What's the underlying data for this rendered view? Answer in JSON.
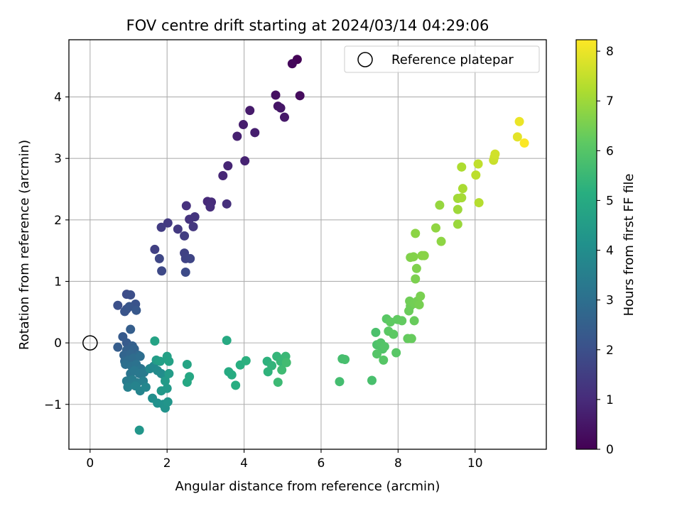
{
  "chart_data": {
    "type": "scatter",
    "title": "FOV centre drift starting at 2024/03/14 04:29:06",
    "xlabel": "Angular distance from reference (arcmin)",
    "ylabel": "Rotation from reference (arcmin)",
    "xlim": [
      -0.55,
      11.85
    ],
    "ylim": [
      -1.73,
      4.93
    ],
    "xticks": [
      0,
      2,
      4,
      6,
      8,
      10
    ],
    "yticks": [
      -1,
      0,
      1,
      2,
      3,
      4
    ],
    "xtick_labels": [
      "0",
      "2",
      "4",
      "6",
      "8",
      "10"
    ],
    "ytick_labels": [
      "−1",
      "0",
      "1",
      "2",
      "3",
      "4"
    ],
    "grid": true,
    "legend": {
      "position": "top-right",
      "entries": [
        {
          "label": "Reference platepar",
          "marker": "open-circle"
        }
      ]
    },
    "reference_point": {
      "x": 0,
      "y": 0
    },
    "colorbar": {
      "label": "Hours from first FF file",
      "colormap": "viridis",
      "range": [
        0,
        8.23
      ],
      "ticks": [
        0,
        1,
        2,
        3,
        4,
        5,
        6,
        7,
        8
      ],
      "tick_labels": [
        "0",
        "1",
        "2",
        "3",
        "4",
        "5",
        "6",
        "7",
        "8"
      ]
    },
    "series": [
      {
        "name": "",
        "points": [
          {
            "x": 5.38,
            "y": 4.61,
            "c": 0.05
          },
          {
            "x": 5.25,
            "y": 4.54,
            "c": 0.15
          },
          {
            "x": 5.45,
            "y": 4.02,
            "c": 0.25
          },
          {
            "x": 4.82,
            "y": 4.03,
            "c": 0.35
          },
          {
            "x": 4.88,
            "y": 3.85,
            "c": 0.45
          },
          {
            "x": 4.95,
            "y": 3.82,
            "c": 0.5
          },
          {
            "x": 5.05,
            "y": 3.67,
            "c": 0.55
          },
          {
            "x": 4.15,
            "y": 3.78,
            "c": 0.6
          },
          {
            "x": 3.98,
            "y": 3.55,
            "c": 0.65
          },
          {
            "x": 4.28,
            "y": 3.42,
            "c": 0.7
          },
          {
            "x": 3.82,
            "y": 3.36,
            "c": 0.75
          },
          {
            "x": 4.02,
            "y": 2.96,
            "c": 0.8
          },
          {
            "x": 3.58,
            "y": 2.88,
            "c": 0.85
          },
          {
            "x": 3.45,
            "y": 2.72,
            "c": 0.9
          },
          {
            "x": 3.05,
            "y": 2.3,
            "c": 0.95
          },
          {
            "x": 3.15,
            "y": 2.29,
            "c": 1.0
          },
          {
            "x": 3.12,
            "y": 2.21,
            "c": 1.05
          },
          {
            "x": 3.55,
            "y": 2.26,
            "c": 1.1
          },
          {
            "x": 2.5,
            "y": 2.23,
            "c": 1.15
          },
          {
            "x": 2.58,
            "y": 2.01,
            "c": 1.2
          },
          {
            "x": 2.72,
            "y": 2.05,
            "c": 1.25
          },
          {
            "x": 2.68,
            "y": 1.89,
            "c": 1.3
          },
          {
            "x": 2.28,
            "y": 1.85,
            "c": 1.35
          },
          {
            "x": 2.02,
            "y": 1.95,
            "c": 1.4
          },
          {
            "x": 1.85,
            "y": 1.88,
            "c": 1.45
          },
          {
            "x": 2.45,
            "y": 1.74,
            "c": 1.5
          },
          {
            "x": 1.68,
            "y": 1.52,
            "c": 1.55
          },
          {
            "x": 2.45,
            "y": 1.46,
            "c": 1.6
          },
          {
            "x": 2.48,
            "y": 1.37,
            "c": 1.65
          },
          {
            "x": 2.6,
            "y": 1.37,
            "c": 1.7
          },
          {
            "x": 1.8,
            "y": 1.37,
            "c": 1.75
          },
          {
            "x": 1.86,
            "y": 1.17,
            "c": 1.8
          },
          {
            "x": 2.48,
            "y": 1.15,
            "c": 1.85
          },
          {
            "x": 0.95,
            "y": 0.79,
            "c": 1.9
          },
          {
            "x": 1.05,
            "y": 0.78,
            "c": 1.95
          },
          {
            "x": 0.72,
            "y": 0.61,
            "c": 2.0
          },
          {
            "x": 0.95,
            "y": 0.55,
            "c": 2.05
          },
          {
            "x": 1.18,
            "y": 0.63,
            "c": 2.1
          },
          {
            "x": 0.9,
            "y": 0.51,
            "c": 2.15
          },
          {
            "x": 1.02,
            "y": 0.59,
            "c": 2.2
          },
          {
            "x": 1.2,
            "y": 0.53,
            "c": 2.25
          },
          {
            "x": 0.85,
            "y": 0.1,
            "c": 2.3
          },
          {
            "x": 0.95,
            "y": 0.0,
            "c": 2.35
          },
          {
            "x": 0.72,
            "y": -0.07,
            "c": 2.4
          },
          {
            "x": 1.05,
            "y": 0.22,
            "c": 2.45
          },
          {
            "x": 1.1,
            "y": -0.05,
            "c": 2.5
          },
          {
            "x": 0.95,
            "y": -0.12,
            "c": 2.55
          },
          {
            "x": 1.15,
            "y": -0.1,
            "c": 2.6
          },
          {
            "x": 0.88,
            "y": -0.2,
            "c": 2.65
          },
          {
            "x": 1.05,
            "y": -0.18,
            "c": 2.7
          },
          {
            "x": 1.25,
            "y": -0.2,
            "c": 2.75
          },
          {
            "x": 0.9,
            "y": -0.3,
            "c": 2.8
          },
          {
            "x": 1.0,
            "y": -0.28,
            "c": 2.85
          },
          {
            "x": 1.12,
            "y": -0.25,
            "c": 2.9
          },
          {
            "x": 1.3,
            "y": -0.22,
            "c": 2.95
          },
          {
            "x": 0.92,
            "y": -0.35,
            "c": 3.0
          },
          {
            "x": 1.08,
            "y": -0.38,
            "c": 3.05
          },
          {
            "x": 1.2,
            "y": -0.35,
            "c": 3.1
          },
          {
            "x": 1.32,
            "y": -0.42,
            "c": 3.15
          },
          {
            "x": 1.05,
            "y": -0.5,
            "c": 3.2
          },
          {
            "x": 1.15,
            "y": -0.45,
            "c": 3.25
          },
          {
            "x": 1.28,
            "y": -0.5,
            "c": 3.3
          },
          {
            "x": 1.4,
            "y": -0.48,
            "c": 3.35
          },
          {
            "x": 0.95,
            "y": -0.62,
            "c": 3.4
          },
          {
            "x": 1.1,
            "y": -0.6,
            "c": 3.45
          },
          {
            "x": 1.22,
            "y": -0.65,
            "c": 3.5
          },
          {
            "x": 1.38,
            "y": -0.62,
            "c": 3.55
          },
          {
            "x": 0.98,
            "y": -0.72,
            "c": 3.6
          },
          {
            "x": 1.18,
            "y": -0.7,
            "c": 3.65
          },
          {
            "x": 1.3,
            "y": -0.78,
            "c": 3.7
          },
          {
            "x": 1.45,
            "y": -0.72,
            "c": 3.75
          },
          {
            "x": 1.55,
            "y": -0.42,
            "c": 3.8
          },
          {
            "x": 1.65,
            "y": -0.38,
            "c": 3.85
          },
          {
            "x": 1.75,
            "y": -0.45,
            "c": 3.9
          },
          {
            "x": 1.85,
            "y": -0.5,
            "c": 3.95
          },
          {
            "x": 1.95,
            "y": -0.55,
            "c": 4.0
          },
          {
            "x": 1.62,
            "y": -0.9,
            "c": 4.05
          },
          {
            "x": 1.75,
            "y": -0.98,
            "c": 4.1
          },
          {
            "x": 1.9,
            "y": -1.0,
            "c": 4.15
          },
          {
            "x": 1.95,
            "y": -1.06,
            "c": 4.2
          },
          {
            "x": 2.02,
            "y": -0.96,
            "c": 4.25
          },
          {
            "x": 1.28,
            "y": -1.42,
            "c": 4.3
          },
          {
            "x": 1.85,
            "y": -0.78,
            "c": 4.35
          },
          {
            "x": 2.0,
            "y": -0.74,
            "c": 4.4
          },
          {
            "x": 1.95,
            "y": -0.62,
            "c": 4.45
          },
          {
            "x": 2.05,
            "y": -0.5,
            "c": 4.5
          },
          {
            "x": 1.72,
            "y": -0.28,
            "c": 4.55
          },
          {
            "x": 1.82,
            "y": -0.3,
            "c": 4.6
          },
          {
            "x": 2.0,
            "y": -0.22,
            "c": 4.65
          },
          {
            "x": 2.05,
            "y": -0.3,
            "c": 4.7
          },
          {
            "x": 1.68,
            "y": 0.03,
            "c": 4.75
          },
          {
            "x": 2.52,
            "y": -0.35,
            "c": 4.8
          },
          {
            "x": 2.58,
            "y": -0.55,
            "c": 4.85
          },
          {
            "x": 2.52,
            "y": -0.64,
            "c": 4.9
          },
          {
            "x": 3.55,
            "y": 0.04,
            "c": 4.95
          },
          {
            "x": 3.6,
            "y": -0.47,
            "c": 5.0
          },
          {
            "x": 3.68,
            "y": -0.52,
            "c": 5.05
          },
          {
            "x": 3.78,
            "y": -0.69,
            "c": 5.1
          },
          {
            "x": 3.9,
            "y": -0.36,
            "c": 5.15
          },
          {
            "x": 4.05,
            "y": -0.29,
            "c": 5.2
          },
          {
            "x": 4.6,
            "y": -0.3,
            "c": 5.25
          },
          {
            "x": 4.62,
            "y": -0.47,
            "c": 5.3
          },
          {
            "x": 4.72,
            "y": -0.37,
            "c": 5.35
          },
          {
            "x": 4.85,
            "y": -0.22,
            "c": 5.4
          },
          {
            "x": 4.95,
            "y": -0.3,
            "c": 5.45
          },
          {
            "x": 5.08,
            "y": -0.22,
            "c": 5.5
          },
          {
            "x": 4.88,
            "y": -0.64,
            "c": 5.55
          },
          {
            "x": 4.98,
            "y": -0.44,
            "c": 5.6
          },
          {
            "x": 5.1,
            "y": -0.32,
            "c": 5.65
          },
          {
            "x": 6.48,
            "y": -0.63,
            "c": 5.7
          },
          {
            "x": 6.55,
            "y": -0.26,
            "c": 5.72
          },
          {
            "x": 6.62,
            "y": -0.27,
            "c": 5.75
          },
          {
            "x": 7.32,
            "y": -0.61,
            "c": 5.78
          },
          {
            "x": 7.42,
            "y": 0.17,
            "c": 5.82
          },
          {
            "x": 7.45,
            "y": -0.03,
            "c": 5.85
          },
          {
            "x": 7.52,
            "y": -0.04,
            "c": 5.88
          },
          {
            "x": 7.6,
            "y": -0.1,
            "c": 5.92
          },
          {
            "x": 7.55,
            "y": 0.0,
            "c": 5.95
          },
          {
            "x": 7.65,
            "y": -0.06,
            "c": 5.98
          },
          {
            "x": 7.45,
            "y": -0.18,
            "c": 6.0
          },
          {
            "x": 7.62,
            "y": -0.28,
            "c": 6.02
          },
          {
            "x": 7.95,
            "y": -0.16,
            "c": 6.05
          },
          {
            "x": 7.7,
            "y": 0.39,
            "c": 6.08
          },
          {
            "x": 7.75,
            "y": 0.19,
            "c": 6.12
          },
          {
            "x": 7.88,
            "y": 0.14,
            "c": 6.15
          },
          {
            "x": 7.8,
            "y": 0.34,
            "c": 6.18
          },
          {
            "x": 7.98,
            "y": 0.38,
            "c": 6.2
          },
          {
            "x": 8.1,
            "y": 0.36,
            "c": 6.22
          },
          {
            "x": 8.25,
            "y": 0.07,
            "c": 6.25
          },
          {
            "x": 8.35,
            "y": 0.07,
            "c": 6.28
          },
          {
            "x": 8.42,
            "y": 0.36,
            "c": 6.3
          },
          {
            "x": 8.28,
            "y": 0.52,
            "c": 6.33
          },
          {
            "x": 8.32,
            "y": 0.6,
            "c": 6.36
          },
          {
            "x": 8.3,
            "y": 0.68,
            "c": 6.4
          },
          {
            "x": 8.42,
            "y": 0.64,
            "c": 6.43
          },
          {
            "x": 8.5,
            "y": 0.68,
            "c": 6.46
          },
          {
            "x": 8.55,
            "y": 0.62,
            "c": 6.5
          },
          {
            "x": 8.58,
            "y": 0.76,
            "c": 6.53
          },
          {
            "x": 8.45,
            "y": 1.04,
            "c": 6.56
          },
          {
            "x": 8.48,
            "y": 1.21,
            "c": 6.6
          },
          {
            "x": 8.32,
            "y": 1.39,
            "c": 6.63
          },
          {
            "x": 8.4,
            "y": 1.4,
            "c": 6.66
          },
          {
            "x": 8.62,
            "y": 1.42,
            "c": 6.7
          },
          {
            "x": 8.68,
            "y": 1.42,
            "c": 6.73
          },
          {
            "x": 8.45,
            "y": 1.78,
            "c": 6.76
          },
          {
            "x": 9.12,
            "y": 1.65,
            "c": 6.8
          },
          {
            "x": 8.98,
            "y": 1.87,
            "c": 6.83
          },
          {
            "x": 9.08,
            "y": 2.24,
            "c": 6.9
          },
          {
            "x": 9.55,
            "y": 1.93,
            "c": 6.95
          },
          {
            "x": 9.55,
            "y": 2.17,
            "c": 7.0
          },
          {
            "x": 9.55,
            "y": 2.35,
            "c": 7.05
          },
          {
            "x": 9.65,
            "y": 2.36,
            "c": 7.1
          },
          {
            "x": 9.68,
            "y": 2.51,
            "c": 7.15
          },
          {
            "x": 9.65,
            "y": 2.86,
            "c": 7.2
          },
          {
            "x": 10.1,
            "y": 2.28,
            "c": 7.3
          },
          {
            "x": 10.02,
            "y": 2.73,
            "c": 7.4
          },
          {
            "x": 10.08,
            "y": 2.91,
            "c": 7.45
          },
          {
            "x": 10.48,
            "y": 2.97,
            "c": 7.55
          },
          {
            "x": 10.5,
            "y": 3.02,
            "c": 7.6
          },
          {
            "x": 10.52,
            "y": 3.07,
            "c": 7.65
          },
          {
            "x": 11.1,
            "y": 3.35,
            "c": 7.9
          },
          {
            "x": 11.15,
            "y": 3.6,
            "c": 8.0
          },
          {
            "x": 11.28,
            "y": 3.25,
            "c": 8.2
          }
        ]
      }
    ]
  }
}
